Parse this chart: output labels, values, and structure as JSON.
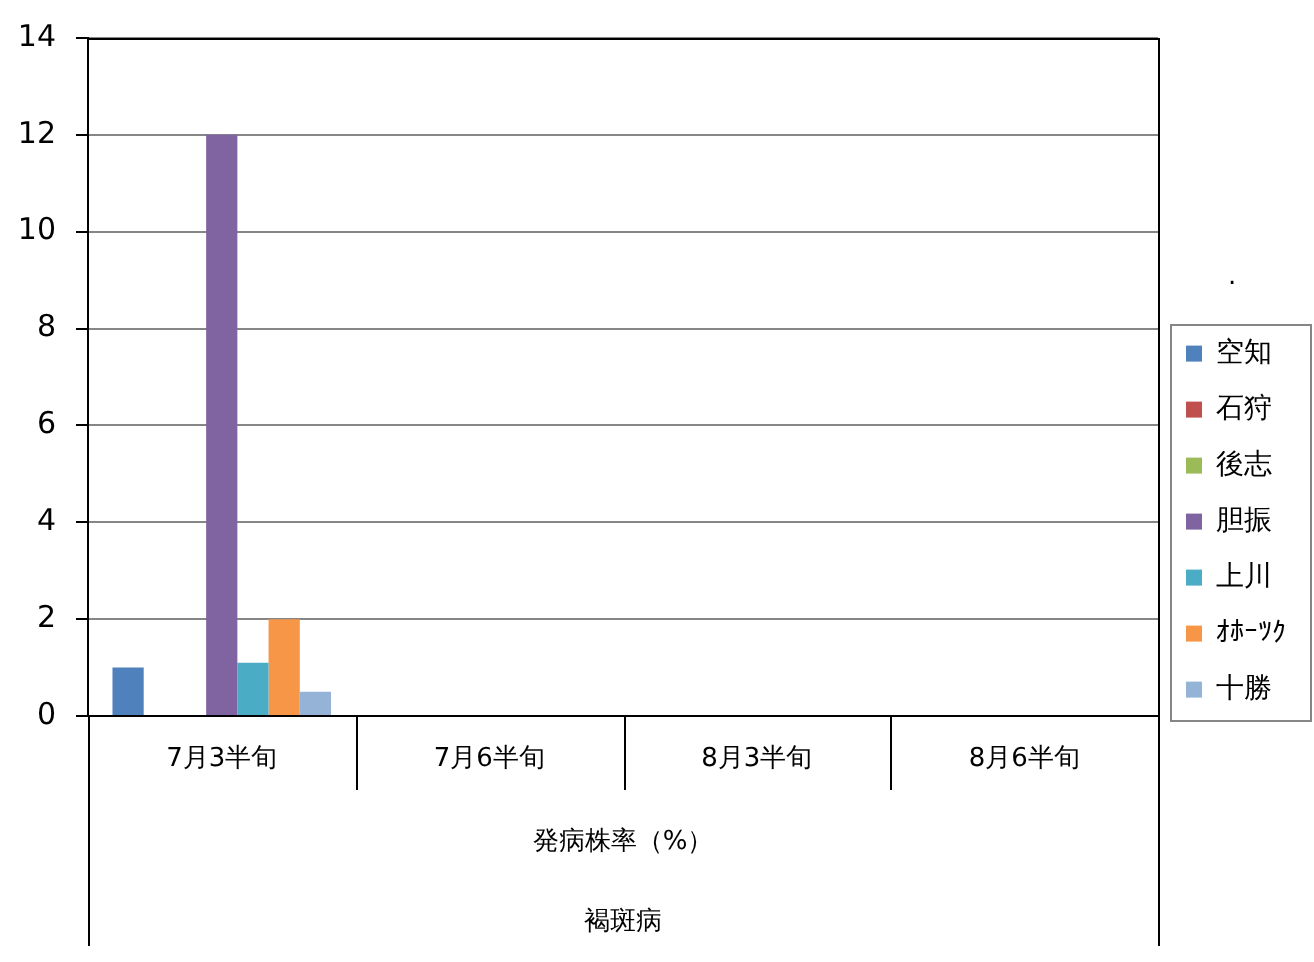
{
  "chart_data": {
    "type": "bar",
    "categories": [
      "7月3半旬",
      "7月6半旬",
      "8月3半旬",
      "8月6半旬"
    ],
    "xlabel": "発病株率（%）",
    "annotations": [
      "褐斑病"
    ],
    "legend_title": ".",
    "legend": "right",
    "grid": "y",
    "ylim": [
      0,
      14
    ],
    "yticks": [
      0,
      2,
      4,
      6,
      8,
      10,
      12,
      14
    ],
    "series": [
      {
        "name": "空知",
        "color": "#4f81bd",
        "values": [
          1,
          null,
          null,
          null
        ]
      },
      {
        "name": "石狩",
        "color": "#c0504d",
        "values": [
          null,
          null,
          null,
          null
        ]
      },
      {
        "name": "後志",
        "color": "#9bbb59",
        "values": [
          null,
          null,
          null,
          null
        ]
      },
      {
        "name": "胆振",
        "color": "#8064a2",
        "values": [
          12,
          null,
          null,
          null
        ]
      },
      {
        "name": "上川",
        "color": "#4bacc6",
        "values": [
          1.1,
          null,
          null,
          null
        ]
      },
      {
        "name": "ｵﾎｰﾂｸ",
        "color": "#f79646",
        "values": [
          2,
          null,
          null,
          null
        ]
      },
      {
        "name": "十勝",
        "color": "#95b3d7",
        "values": [
          0.5,
          null,
          null,
          null
        ]
      }
    ]
  }
}
